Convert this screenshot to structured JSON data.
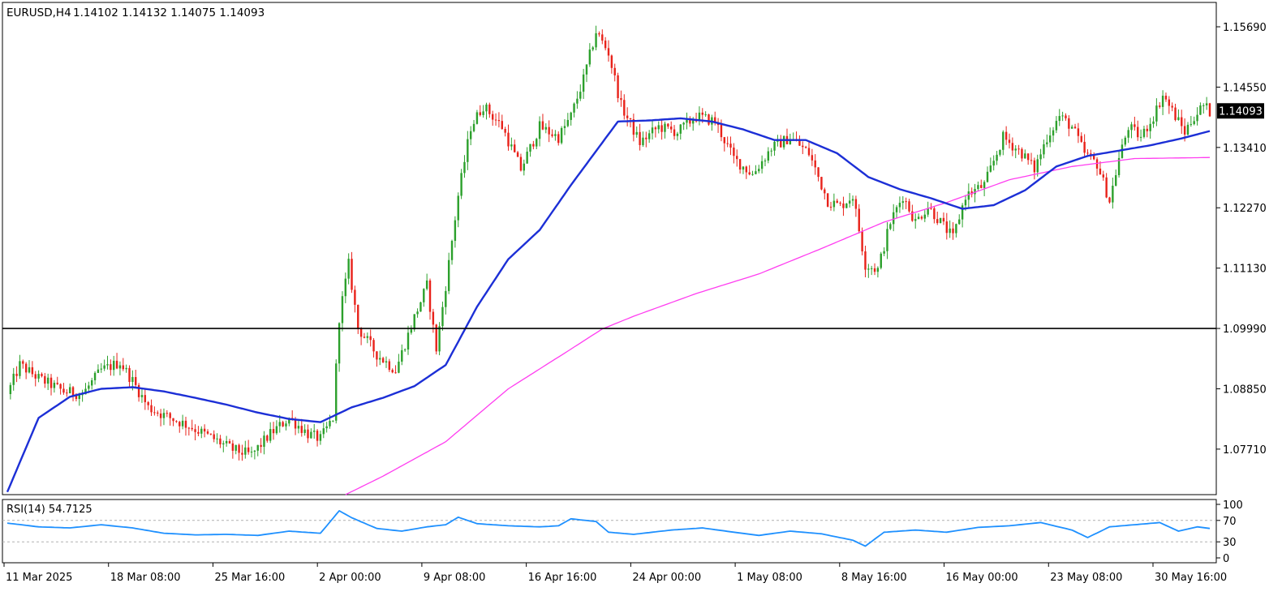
{
  "header": {
    "symbol": "EURUSD,H4",
    "ohlc": "1.14102 1.14132 1.14075 1.14093"
  },
  "price_badge": "1.14093",
  "rsi_label": "RSI(14) 54.7125",
  "colors": {
    "bull": "#2ca02c",
    "bear": "#e8221a",
    "ma_fast": "#1c2fd6",
    "ma_slow": "#ff3df0",
    "rsi": "#1e90ff",
    "axis": "#000000",
    "hline": "#000000",
    "badge_bg": "#000000",
    "badge_fg": "#ffffff"
  },
  "chart_data": [
    {
      "type": "candlestick",
      "panel": "price",
      "symbol": "EURUSD",
      "timeframe": "H4",
      "ylim": [
        1.0685,
        1.1615
      ],
      "y_ticks": [
        "1.15690",
        "1.14550",
        "1.13410",
        "1.12270",
        "1.11130",
        "1.09990",
        "1.08850",
        "1.07710"
      ],
      "x_ticks": [
        "11 Mar 2025",
        "18 Mar 08:00",
        "25 Mar 16:00",
        "2 Apr 00:00",
        "9 Apr 08:00",
        "16 Apr 16:00",
        "24 Apr 00:00",
        "1 May 08:00",
        "8 May 16:00",
        "16 May 00:00",
        "23 May 08:00",
        "30 May 16:00"
      ],
      "horizontal_line": 1.0999,
      "last_price": 1.14093,
      "price_anchors": [
        [
          0,
          1.0875
        ],
        [
          4,
          1.093
        ],
        [
          10,
          1.0905
        ],
        [
          18,
          1.088
        ],
        [
          24,
          1.0875
        ],
        [
          30,
          1.092
        ],
        [
          36,
          1.0935
        ],
        [
          40,
          1.09
        ],
        [
          45,
          1.085
        ],
        [
          50,
          1.0835
        ],
        [
          58,
          1.0815
        ],
        [
          66,
          1.079
        ],
        [
          72,
          1.077
        ],
        [
          78,
          1.076
        ],
        [
          84,
          1.08
        ],
        [
          90,
          1.083
        ],
        [
          96,
          1.08
        ],
        [
          100,
          1.079
        ],
        [
          104,
          1.083
        ],
        [
          106,
          1.102
        ],
        [
          109,
          1.112
        ],
        [
          112,
          1.1
        ],
        [
          118,
          1.095
        ],
        [
          124,
          1.092
        ],
        [
          130,
          1.102
        ],
        [
          134,
          1.108
        ],
        [
          137,
          1.096
        ],
        [
          140,
          1.108
        ],
        [
          144,
          1.125
        ],
        [
          148,
          1.138
        ],
        [
          152,
          1.142
        ],
        [
          158,
          1.138
        ],
        [
          164,
          1.13
        ],
        [
          170,
          1.138
        ],
        [
          176,
          1.136
        ],
        [
          180,
          1.14
        ],
        [
          184,
          1.147
        ],
        [
          188,
          1.156
        ],
        [
          192,
          1.152
        ],
        [
          196,
          1.142
        ],
        [
          202,
          1.135
        ],
        [
          208,
          1.138
        ],
        [
          214,
          1.137
        ],
        [
          220,
          1.14
        ],
        [
          226,
          1.139
        ],
        [
          232,
          1.132
        ],
        [
          238,
          1.129
        ],
        [
          244,
          1.134
        ],
        [
          250,
          1.136
        ],
        [
          256,
          1.133
        ],
        [
          262,
          1.124
        ],
        [
          266,
          1.123
        ],
        [
          270,
          1.125
        ],
        [
          274,
          1.112
        ],
        [
          278,
          1.111
        ],
        [
          282,
          1.12
        ],
        [
          286,
          1.125
        ],
        [
          290,
          1.12
        ],
        [
          294,
          1.123
        ],
        [
          298,
          1.12
        ],
        [
          302,
          1.117
        ],
        [
          306,
          1.125
        ],
        [
          312,
          1.127
        ],
        [
          318,
          1.136
        ],
        [
          324,
          1.133
        ],
        [
          328,
          1.13
        ],
        [
          332,
          1.136
        ],
        [
          336,
          1.14
        ],
        [
          340,
          1.138
        ],
        [
          344,
          1.133
        ],
        [
          348,
          1.131
        ],
        [
          352,
          1.124
        ],
        [
          355,
          1.132
        ],
        [
          358,
          1.138
        ],
        [
          362,
          1.136
        ],
        [
          366,
          1.14
        ],
        [
          369,
          1.144
        ],
        [
          373,
          1.14
        ],
        [
          376,
          1.137
        ],
        [
          379,
          1.14
        ],
        [
          382,
          1.142
        ],
        [
          384,
          1.1409
        ]
      ],
      "ma_fast": {
        "color": "#1c2fd6",
        "anchors": [
          [
            0,
            1.069
          ],
          [
            10,
            1.083
          ],
          [
            20,
            1.087
          ],
          [
            30,
            1.0885
          ],
          [
            40,
            1.0888
          ],
          [
            50,
            1.088
          ],
          [
            60,
            1.0868
          ],
          [
            70,
            1.0855
          ],
          [
            80,
            1.084
          ],
          [
            90,
            1.0828
          ],
          [
            100,
            1.0822
          ],
          [
            110,
            1.085
          ],
          [
            120,
            1.0868
          ],
          [
            130,
            1.089
          ],
          [
            140,
            1.093
          ],
          [
            150,
            1.104
          ],
          [
            160,
            1.113
          ],
          [
            170,
            1.1185
          ],
          [
            180,
            1.127
          ],
          [
            190,
            1.135
          ],
          [
            195,
            1.139
          ],
          [
            205,
            1.1392
          ],
          [
            215,
            1.1396
          ],
          [
            225,
            1.139
          ],
          [
            235,
            1.1375
          ],
          [
            245,
            1.1355
          ],
          [
            255,
            1.1355
          ],
          [
            265,
            1.133
          ],
          [
            275,
            1.1285
          ],
          [
            285,
            1.1262
          ],
          [
            295,
            1.1245
          ],
          [
            305,
            1.1225
          ],
          [
            315,
            1.1232
          ],
          [
            325,
            1.126
          ],
          [
            335,
            1.1305
          ],
          [
            345,
            1.1325
          ],
          [
            355,
            1.1335
          ],
          [
            365,
            1.1345
          ],
          [
            375,
            1.1358
          ],
          [
            384,
            1.1372
          ]
        ]
      },
      "ma_slow": {
        "color": "#ff3df0",
        "anchors": [
          [
            108,
            1.0685
          ],
          [
            120,
            1.072
          ],
          [
            140,
            1.0785
          ],
          [
            160,
            1.0885
          ],
          [
            180,
            1.096
          ],
          [
            190,
            1.0998
          ],
          [
            200,
            1.1022
          ],
          [
            220,
            1.1065
          ],
          [
            240,
            1.1102
          ],
          [
            260,
            1.115
          ],
          [
            280,
            1.12
          ],
          [
            300,
            1.1237
          ],
          [
            320,
            1.128
          ],
          [
            340,
            1.1305
          ],
          [
            360,
            1.132
          ],
          [
            384,
            1.1322
          ]
        ]
      }
    },
    {
      "type": "line",
      "panel": "rsi",
      "name": "RSI(14) 54.7125",
      "ylim": [
        0,
        100
      ],
      "y_ticks": [
        "100",
        "70",
        "30",
        "0"
      ],
      "levels": [
        70,
        30
      ],
      "anchors": [
        [
          0,
          65
        ],
        [
          10,
          58
        ],
        [
          20,
          56
        ],
        [
          30,
          62
        ],
        [
          40,
          56
        ],
        [
          50,
          46
        ],
        [
          60,
          43
        ],
        [
          70,
          44
        ],
        [
          80,
          42
        ],
        [
          90,
          50
        ],
        [
          100,
          46
        ],
        [
          106,
          88
        ],
        [
          110,
          75
        ],
        [
          118,
          55
        ],
        [
          126,
          50
        ],
        [
          134,
          58
        ],
        [
          140,
          62
        ],
        [
          144,
          76
        ],
        [
          150,
          64
        ],
        [
          160,
          60
        ],
        [
          170,
          58
        ],
        [
          176,
          60
        ],
        [
          180,
          73
        ],
        [
          188,
          68
        ],
        [
          192,
          48
        ],
        [
          200,
          44
        ],
        [
          212,
          52
        ],
        [
          222,
          56
        ],
        [
          232,
          48
        ],
        [
          240,
          42
        ],
        [
          250,
          50
        ],
        [
          260,
          45
        ],
        [
          270,
          33
        ],
        [
          274,
          22
        ],
        [
          280,
          48
        ],
        [
          290,
          52
        ],
        [
          300,
          48
        ],
        [
          310,
          57
        ],
        [
          320,
          60
        ],
        [
          330,
          66
        ],
        [
          340,
          52
        ],
        [
          345,
          38
        ],
        [
          352,
          58
        ],
        [
          360,
          62
        ],
        [
          368,
          66
        ],
        [
          374,
          50
        ],
        [
          380,
          58
        ],
        [
          384,
          55
        ]
      ],
      "last_value": 54.7125
    }
  ]
}
